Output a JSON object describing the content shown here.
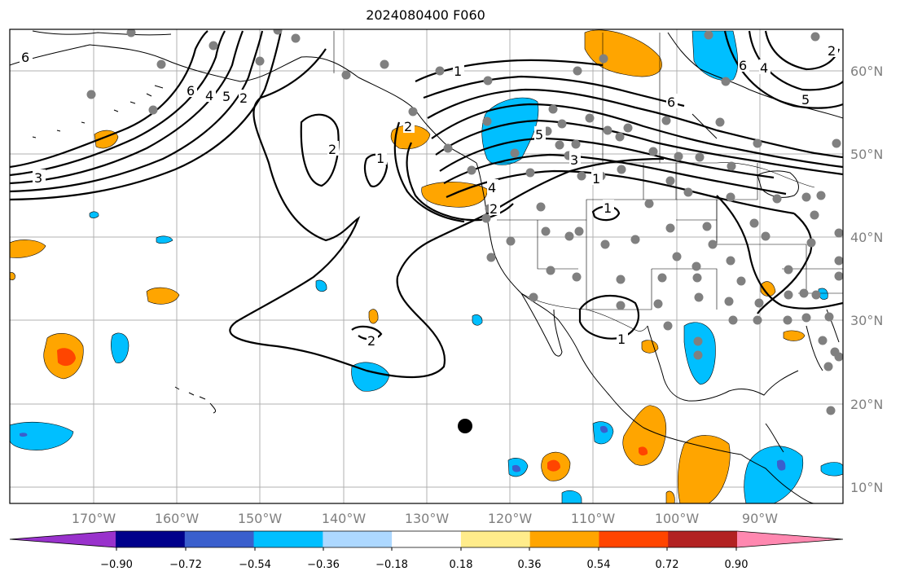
{
  "title": "2024080400 F060",
  "lon_labels": [
    "170°W",
    "160°W",
    "150°W",
    "140°W",
    "130°W",
    "120°W",
    "110°W",
    "100°W",
    "90°W"
  ],
  "lat_labels": [
    "60°N",
    "50°N",
    "40°N",
    "30°N",
    "20°N",
    "10°N"
  ],
  "colorbar": {
    "tick_labels": [
      "−0.90",
      "−0.72",
      "−0.54",
      "−0.36",
      "−0.18",
      "0.18",
      "0.36",
      "0.54",
      "0.72",
      "0.90"
    ],
    "colors": [
      "#9932cc",
      "#00008b",
      "#3a5fcd",
      "#00bfff",
      "#add8ff",
      "#ffffff",
      "#ffec8b",
      "#ffa500",
      "#ff4500",
      "#b22222",
      "#ff88b0"
    ]
  },
  "contour_labels": {
    "west_pacific": [
      "6",
      "3",
      "6",
      "4",
      "5",
      "2"
    ],
    "gulf_of_alaska": [
      "2",
      "1",
      "2"
    ],
    "northwest": [
      "1",
      "2",
      "5",
      "4",
      "3",
      "6"
    ],
    "rockies": [
      "1",
      "2",
      "1"
    ],
    "mexico": [
      "1"
    ],
    "northeast": [
      "2",
      "5",
      "4",
      "6"
    ]
  },
  "colors": {
    "orange": "#ffa500",
    "red": "#ff4500",
    "cyan": "#00bfff",
    "blue": "#3a5fcd",
    "stations": "#808080",
    "grid": "#b0b0b0"
  }
}
